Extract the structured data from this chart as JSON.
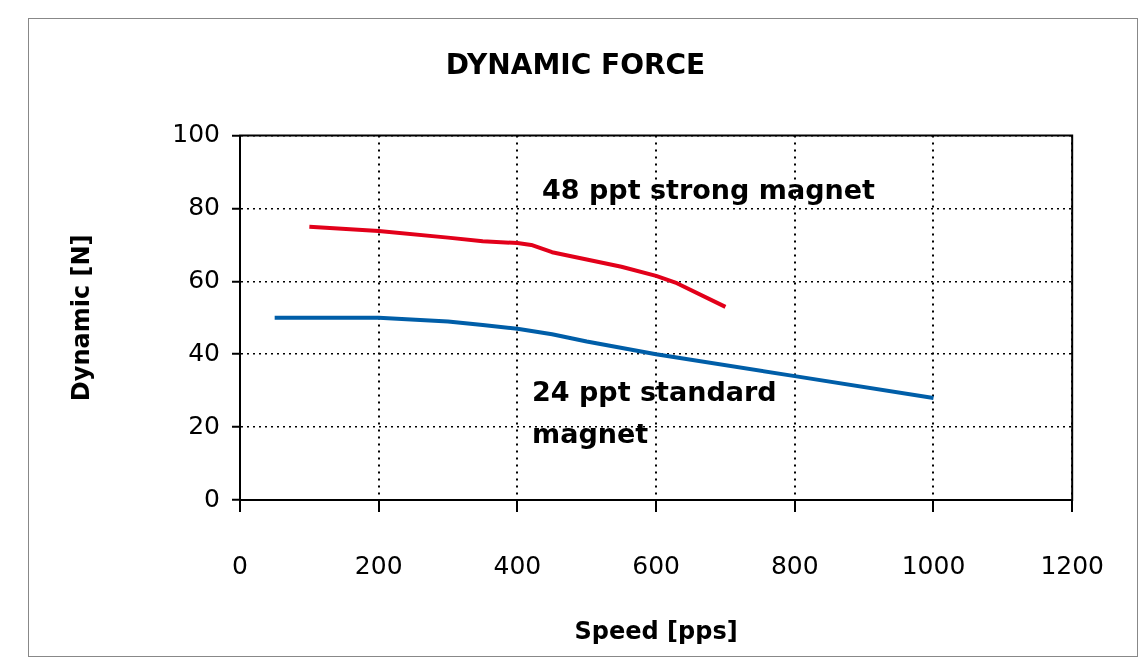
{
  "chart_data": {
    "type": "line",
    "title": "DYNAMIC FORCE",
    "xlabel": "Speed [pps]",
    "ylabel": "Dynamic [N]",
    "xlim": [
      0,
      1200
    ],
    "xticks": [
      0,
      200,
      400,
      600,
      800,
      1000,
      1200
    ],
    "ylim": [
      0,
      100
    ],
    "yticks": [
      0,
      20,
      40,
      60,
      80,
      100
    ],
    "grid": true,
    "legend": false,
    "marker": "none",
    "line_style": "solid",
    "series": [
      {
        "name": "48 ppt strong magnet",
        "color": "#e2001a",
        "x": [
          100,
          200,
          300,
          350,
          400,
          420,
          450,
          500,
          550,
          600,
          630,
          700
        ],
        "values": [
          75,
          73.8,
          72,
          71,
          70.5,
          70,
          68,
          66,
          64,
          61.5,
          59.5,
          53
        ]
      },
      {
        "name": "24 ppt standard magnet",
        "color": "#005ea8",
        "x": [
          50,
          100,
          200,
          300,
          350,
          400,
          450,
          500,
          600,
          800,
          1000
        ],
        "values": [
          50,
          50,
          50,
          49,
          48,
          47,
          45.5,
          43.5,
          40,
          34,
          28
        ]
      }
    ]
  }
}
